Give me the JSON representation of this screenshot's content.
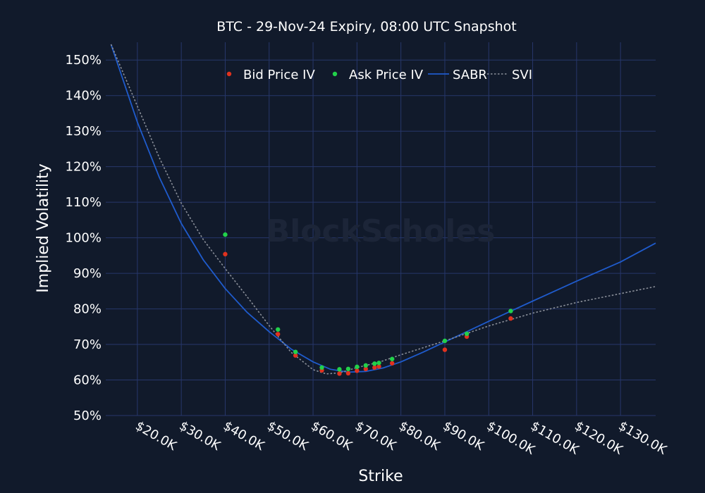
{
  "chart_data": {
    "type": "scatter",
    "title": "BTC - 29-Nov-24 Expiry, 08:00 UTC Snapshot",
    "xlabel": "Strike",
    "ylabel": "Implied Volatility",
    "watermark": "BlockScholes",
    "xlim": [
      12800,
      138000
    ],
    "ylim": [
      50,
      155
    ],
    "x_ticks": [
      {
        "value": 20000,
        "label": "$20.0K"
      },
      {
        "value": 30000,
        "label": "$30.0K"
      },
      {
        "value": 40000,
        "label": "$40.0K"
      },
      {
        "value": 50000,
        "label": "$50.0K"
      },
      {
        "value": 60000,
        "label": "$60.0K"
      },
      {
        "value": 70000,
        "label": "$70.0K"
      },
      {
        "value": 80000,
        "label": "$80.0K"
      },
      {
        "value": 90000,
        "label": "$90.0K"
      },
      {
        "value": 100000,
        "label": "$100.0K"
      },
      {
        "value": 110000,
        "label": "$110.0K"
      },
      {
        "value": 120000,
        "label": "$120.0K"
      },
      {
        "value": 130000,
        "label": "$130.0K"
      }
    ],
    "y_ticks": [
      {
        "value": 50,
        "label": "50%"
      },
      {
        "value": 60,
        "label": "60%"
      },
      {
        "value": 70,
        "label": "70%"
      },
      {
        "value": 80,
        "label": "80%"
      },
      {
        "value": 90,
        "label": "90%"
      },
      {
        "value": 100,
        "label": "100%"
      },
      {
        "value": 110,
        "label": "110%"
      },
      {
        "value": 120,
        "label": "120%"
      },
      {
        "value": 130,
        "label": "130%"
      },
      {
        "value": 140,
        "label": "140%"
      },
      {
        "value": 150,
        "label": "150%"
      }
    ],
    "grid": true,
    "legend_position": "top-center",
    "series": [
      {
        "name": "Bid Price IV",
        "kind": "markers",
        "color": "#e0321e",
        "x": [
          40000,
          52000,
          56000,
          62000,
          66000,
          68000,
          70000,
          72000,
          74000,
          75000,
          78000,
          90000,
          95000,
          105000
        ],
        "y": [
          95.4,
          72.9,
          66.9,
          62.7,
          61.8,
          61.9,
          62.6,
          63.1,
          63.5,
          63.8,
          64.7,
          68.5,
          72.2,
          77.3
        ]
      },
      {
        "name": "Ask Price IV",
        "kind": "markers",
        "color": "#22d14a",
        "x": [
          40000,
          52000,
          56000,
          62000,
          66000,
          68000,
          70000,
          72000,
          74000,
          75000,
          78000,
          90000,
          95000,
          105000
        ],
        "y": [
          100.9,
          74.2,
          67.9,
          63.5,
          63.0,
          63.1,
          63.7,
          64.1,
          64.6,
          64.8,
          65.9,
          71.0,
          73.0,
          79.4
        ]
      },
      {
        "name": "SABR",
        "kind": "line",
        "color": "#1f5bcc",
        "dash": "solid",
        "x": [
          14000,
          20000,
          25000,
          30000,
          35000,
          40000,
          45000,
          50000,
          55000,
          60000,
          64000,
          68000,
          72000,
          76000,
          80000,
          85000,
          90000,
          95000,
          100000,
          110000,
          120000,
          130000,
          138000
        ],
        "y": [
          154.4,
          132.5,
          117.0,
          104.0,
          93.8,
          85.7,
          79.0,
          73.6,
          68.7,
          65.1,
          63.0,
          62.2,
          62.4,
          63.4,
          65.1,
          67.8,
          70.7,
          73.6,
          76.5,
          82.2,
          87.8,
          93.2,
          98.5
        ]
      },
      {
        "name": "SVI",
        "kind": "line",
        "color": "#8a8f99",
        "dash": "dotted",
        "x": [
          14000,
          20000,
          25000,
          30000,
          35000,
          40000,
          45000,
          50000,
          55000,
          60000,
          63000,
          66000,
          70000,
          75000,
          80000,
          90000,
          100000,
          110000,
          120000,
          130000,
          138000
        ],
        "y": [
          154.4,
          137.0,
          122.5,
          109.7,
          99.5,
          91.3,
          83.4,
          75.3,
          67.8,
          62.9,
          61.7,
          62.0,
          63.5,
          65.0,
          67.1,
          71.0,
          75.2,
          78.8,
          81.8,
          84.3,
          86.3
        ]
      }
    ]
  }
}
